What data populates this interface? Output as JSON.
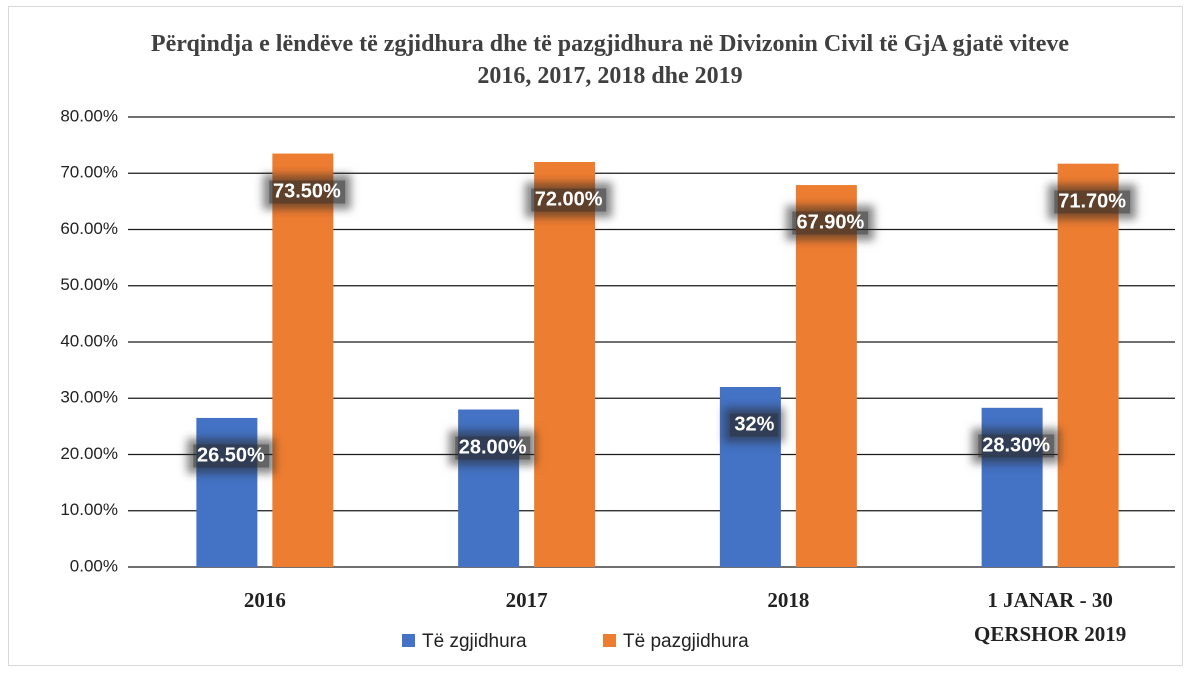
{
  "chart_data": {
    "type": "bar",
    "title": "Përqindja e lëndëve të zgjidhura dhe të pazgjidhura në Divizonin Civil të GjA gjatë viteve 2016, 2017, 2018 dhe 2019",
    "categories": [
      "2016",
      "2017",
      "2018",
      "1 JANAR - 30 QERSHOR 2019"
    ],
    "series": [
      {
        "name": "Të zgjidhura",
        "color": "#4472c4",
        "values": [
          26.5,
          28,
          32,
          28.3
        ],
        "value_labels": [
          "26.50%",
          "28.00%",
          "32%",
          "28.30%"
        ]
      },
      {
        "name": "Të pazgjidhura",
        "color": "#ed7d31",
        "values": [
          73.5,
          72,
          67.9,
          71.7
        ],
        "value_labels": [
          "73.50%",
          "72.00%",
          "67.90%",
          "71.70%"
        ]
      }
    ],
    "ylim": [
      0,
      80
    ],
    "yticks": [
      {
        "value": 0,
        "label": "0.00%"
      },
      {
        "value": 10,
        "label": "10.00%"
      },
      {
        "value": 20,
        "label": "20.00%"
      },
      {
        "value": 30,
        "label": "30.00%"
      },
      {
        "value": 40,
        "label": "40.00%"
      },
      {
        "value": 50,
        "label": "50.00%"
      },
      {
        "value": 60,
        "label": "60.00%"
      },
      {
        "value": 70,
        "label": "70.00%"
      },
      {
        "value": 80,
        "label": "80.00%"
      }
    ],
    "grid": true,
    "legend": "bottom"
  }
}
